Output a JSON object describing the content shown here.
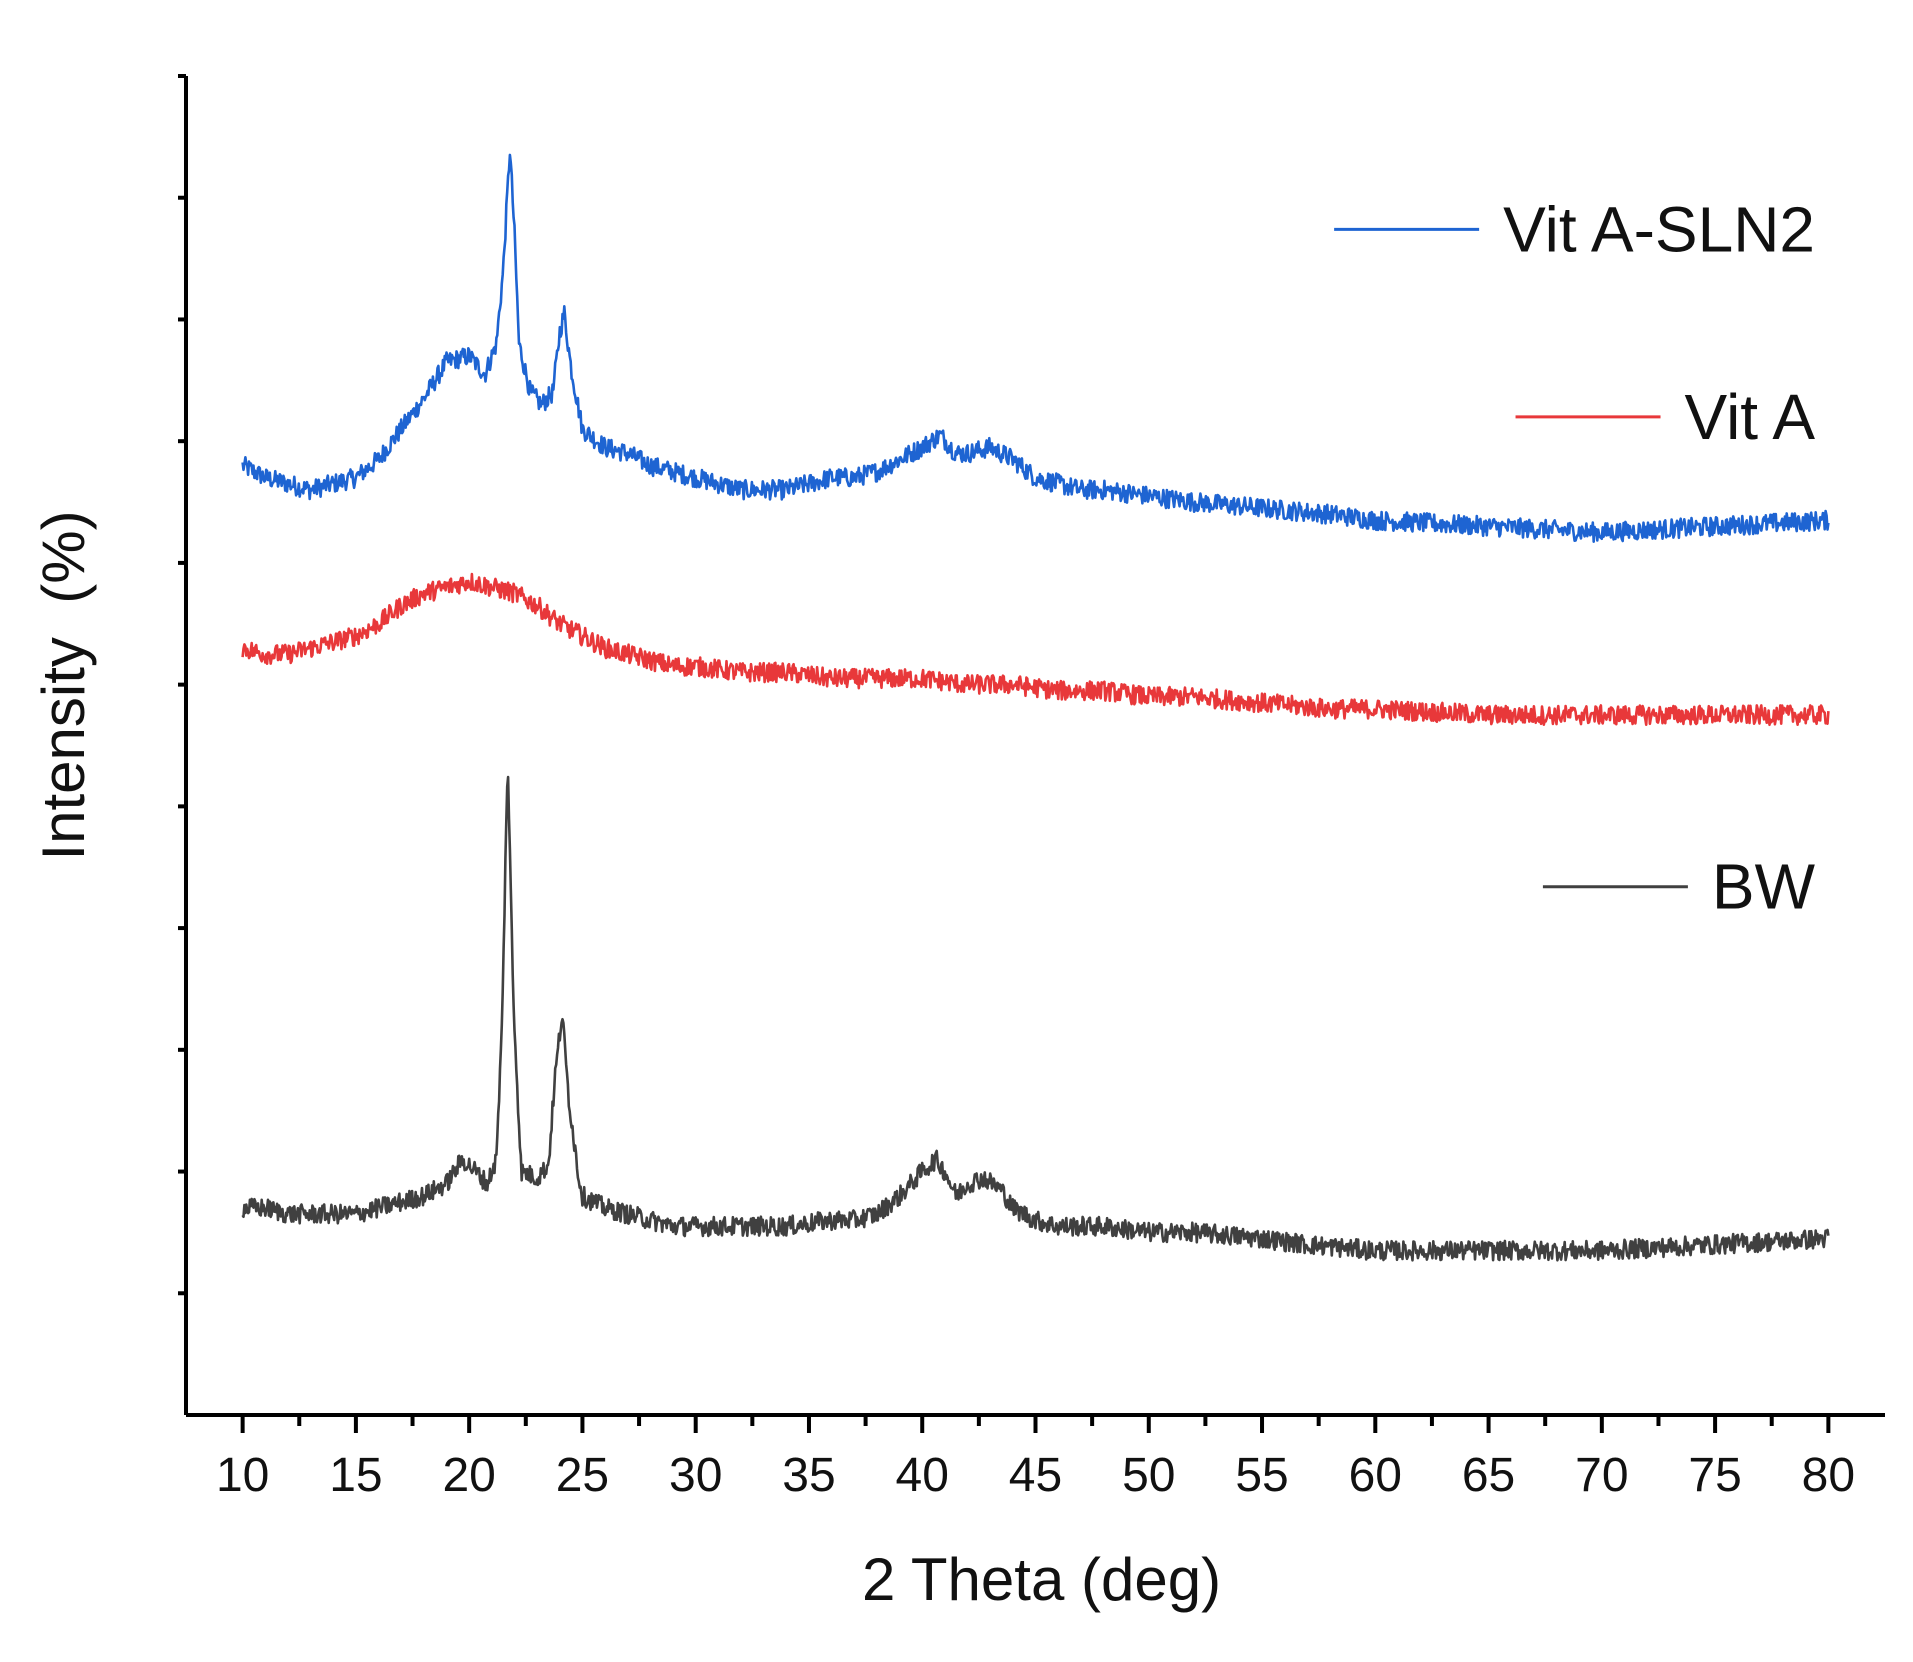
{
  "chart_data": {
    "type": "line",
    "title": "",
    "xlabel": "2 Theta (deg)",
    "ylabel": "Intensity  (%)",
    "xlim": [
      7.5,
      82.5
    ],
    "ylim": [
      0,
      110
    ],
    "x_ticks": [
      10,
      15,
      20,
      25,
      30,
      35,
      40,
      45,
      50,
      55,
      60,
      65,
      70,
      75,
      80
    ],
    "x_ticklabels": [
      "10",
      "15",
      "20",
      "25",
      "30",
      "35",
      "40",
      "45",
      "50",
      "55",
      "60",
      "65",
      "70",
      "75",
      "80"
    ],
    "y_ticklabels_shown": false,
    "legend": "inline-right",
    "series": [
      {
        "name": "Vit A-SLN2",
        "color": "#1e64d2",
        "points": [
          [
            10,
            78
          ],
          [
            11,
            77
          ],
          [
            12,
            76.5
          ],
          [
            13,
            76
          ],
          [
            14,
            76.5
          ],
          [
            15,
            77
          ],
          [
            16,
            78.5
          ],
          [
            17,
            81
          ],
          [
            18,
            83.5
          ],
          [
            19,
            86.5
          ],
          [
            20,
            87
          ],
          [
            20.7,
            85.5
          ],
          [
            21.2,
            88
          ],
          [
            21.5,
            94
          ],
          [
            21.8,
            104
          ],
          [
            22.0,
            97
          ],
          [
            22.2,
            88
          ],
          [
            22.7,
            84
          ],
          [
            23.2,
            83
          ],
          [
            23.7,
            84
          ],
          [
            24.0,
            89
          ],
          [
            24.2,
            90.5
          ],
          [
            24.5,
            86
          ],
          [
            25,
            81
          ],
          [
            26,
            79.5
          ],
          [
            27,
            79
          ],
          [
            28,
            78
          ],
          [
            29,
            77.5
          ],
          [
            30,
            77
          ],
          [
            31,
            76.5
          ],
          [
            32,
            76
          ],
          [
            33,
            76
          ],
          [
            34,
            76
          ],
          [
            35,
            76.5
          ],
          [
            36,
            77
          ],
          [
            37,
            77
          ],
          [
            38,
            77.5
          ],
          [
            39,
            78.5
          ],
          [
            40,
            79.5
          ],
          [
            40.8,
            80.5
          ],
          [
            41.5,
            79
          ],
          [
            42,
            79
          ],
          [
            43,
            79.5
          ],
          [
            44,
            78.5
          ],
          [
            45,
            77
          ],
          [
            46,
            76.5
          ],
          [
            47,
            76
          ],
          [
            48,
            76
          ],
          [
            50,
            75.5
          ],
          [
            52,
            75
          ],
          [
            55,
            74.5
          ],
          [
            58,
            74
          ],
          [
            60,
            73.5
          ],
          [
            65,
            73
          ],
          [
            70,
            72.5
          ],
          [
            75,
            73
          ],
          [
            80,
            73.5
          ]
        ]
      },
      {
        "name": "Vit A",
        "color": "#e8383a",
        "points": [
          [
            10,
            63
          ],
          [
            11,
            62.5
          ],
          [
            12,
            62.5
          ],
          [
            13,
            63
          ],
          [
            14,
            63.5
          ],
          [
            15,
            64
          ],
          [
            16,
            65
          ],
          [
            17,
            66.5
          ],
          [
            18,
            67.5
          ],
          [
            19,
            68
          ],
          [
            20,
            68.5
          ],
          [
            21,
            68
          ],
          [
            22,
            67.5
          ],
          [
            23,
            66.5
          ],
          [
            24,
            65
          ],
          [
            25,
            64
          ],
          [
            26,
            63
          ],
          [
            27,
            62.5
          ],
          [
            28,
            62
          ],
          [
            29,
            61.5
          ],
          [
            30,
            61.5
          ],
          [
            32,
            61
          ],
          [
            34,
            61
          ],
          [
            36,
            60.5
          ],
          [
            38,
            60.5
          ],
          [
            40,
            60.5
          ],
          [
            42,
            60
          ],
          [
            44,
            60
          ],
          [
            46,
            59.5
          ],
          [
            48,
            59.5
          ],
          [
            50,
            59
          ],
          [
            52,
            59
          ],
          [
            55,
            58.5
          ],
          [
            58,
            58
          ],
          [
            60,
            58
          ],
          [
            65,
            57.5
          ],
          [
            70,
            57.5
          ],
          [
            75,
            57.5
          ],
          [
            80,
            57.5
          ]
        ]
      },
      {
        "name": "BW",
        "color": "#404040",
        "points": [
          [
            10,
            17
          ],
          [
            11,
            17
          ],
          [
            12,
            16.5
          ],
          [
            13,
            16.5
          ],
          [
            14,
            16.5
          ],
          [
            15,
            16.5
          ],
          [
            16,
            17
          ],
          [
            17,
            17.5
          ],
          [
            18,
            18
          ],
          [
            19,
            19
          ],
          [
            19.7,
            21
          ],
          [
            20.3,
            20
          ],
          [
            20.8,
            19
          ],
          [
            21.2,
            21
          ],
          [
            21.45,
            32
          ],
          [
            21.7,
            54
          ],
          [
            21.95,
            34
          ],
          [
            22.3,
            20
          ],
          [
            23,
            19.5
          ],
          [
            23.5,
            20.5
          ],
          [
            23.8,
            28
          ],
          [
            24.1,
            33
          ],
          [
            24.4,
            26
          ],
          [
            24.8,
            20
          ],
          [
            25,
            18
          ],
          [
            26,
            17
          ],
          [
            27,
            16.5
          ],
          [
            28,
            16
          ],
          [
            29,
            15.5
          ],
          [
            30,
            15.5
          ],
          [
            32,
            15.5
          ],
          [
            34,
            15.5
          ],
          [
            36,
            16
          ],
          [
            37,
            16
          ],
          [
            38,
            16.5
          ],
          [
            39,
            18
          ],
          [
            40,
            20
          ],
          [
            40.6,
            21
          ],
          [
            41,
            20
          ],
          [
            41.5,
            18
          ],
          [
            42,
            19
          ],
          [
            42.7,
            19.5
          ],
          [
            43.5,
            18.5
          ],
          [
            44,
            17
          ],
          [
            45,
            16
          ],
          [
            46,
            15.5
          ],
          [
            47,
            15.5
          ],
          [
            48,
            15.5
          ],
          [
            50,
            15
          ],
          [
            52,
            15
          ],
          [
            55,
            14.5
          ],
          [
            57,
            14
          ],
          [
            60,
            13.5
          ],
          [
            65,
            13.5
          ],
          [
            70,
            13.5
          ],
          [
            75,
            14
          ],
          [
            80,
            14.5
          ]
        ]
      }
    ]
  }
}
